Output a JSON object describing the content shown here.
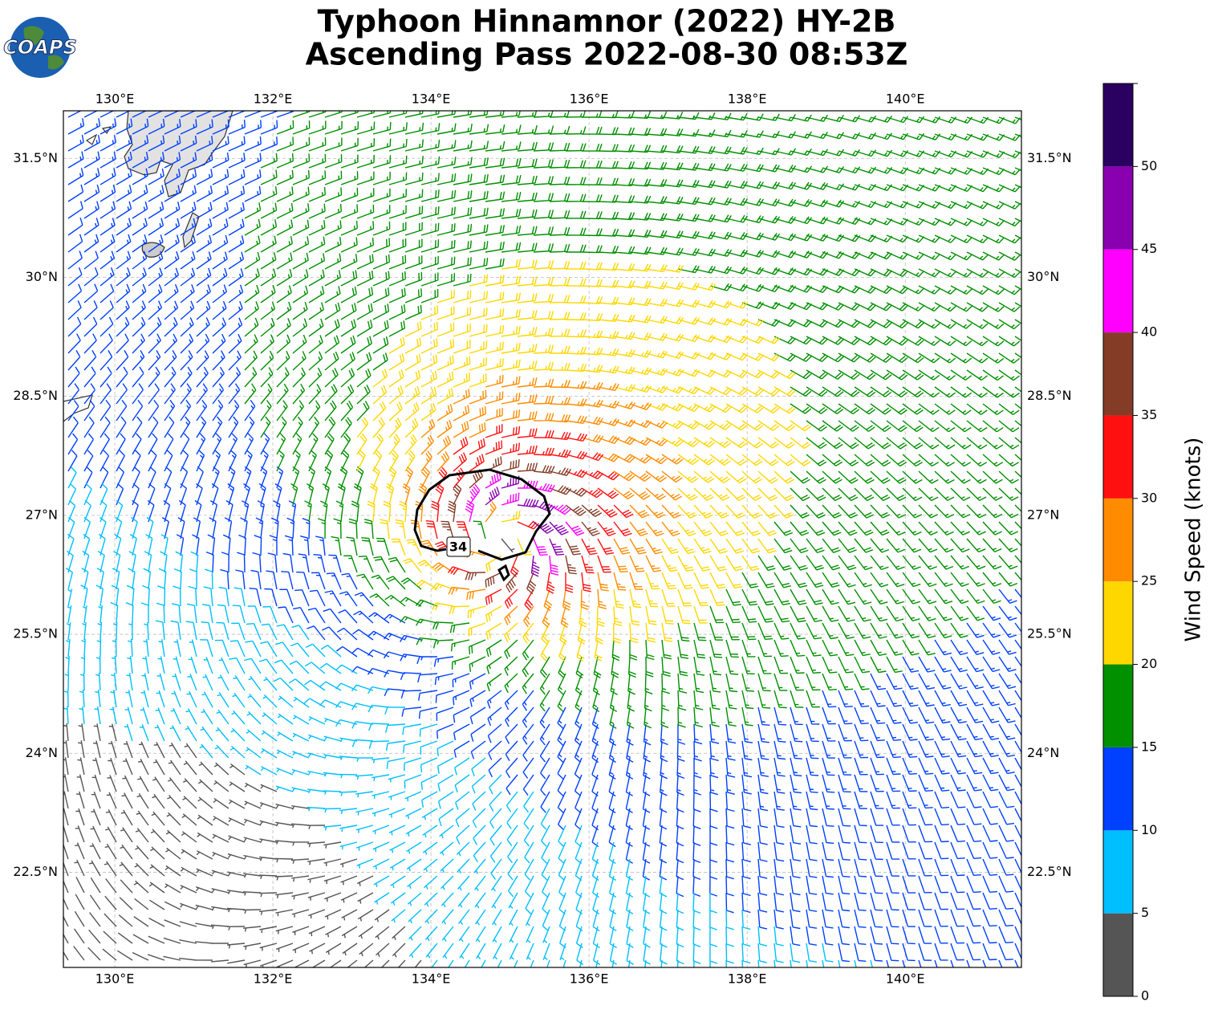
{
  "header": {
    "title_line1": "Typhoon Hinnamnor (2022) HY-2B",
    "title_line2": "Ascending Pass 2022-08-30 08:53Z"
  },
  "logo": {
    "text": "COAPS"
  },
  "map": {
    "xlim": [
      129.35,
      141.47
    ],
    "ylim": [
      21.3,
      32.1
    ],
    "xticks": [
      {
        "value": 130,
        "label": "130°E"
      },
      {
        "value": 132,
        "label": "132°E"
      },
      {
        "value": 134,
        "label": "134°E"
      },
      {
        "value": 136,
        "label": "136°E"
      },
      {
        "value": 138,
        "label": "138°E"
      },
      {
        "value": 140,
        "label": "140°E"
      }
    ],
    "yticks": [
      {
        "value": 22.5,
        "label": "22.5°N"
      },
      {
        "value": 24,
        "label": "24°N"
      },
      {
        "value": 25.5,
        "label": "25.5°N"
      },
      {
        "value": 27,
        "label": "27°N"
      },
      {
        "value": 28.5,
        "label": "28.5°N"
      },
      {
        "value": 30,
        "label": "30°N"
      },
      {
        "value": 31.5,
        "label": "31.5°N"
      }
    ],
    "grid": true,
    "contour_label": "34"
  },
  "colorbar": {
    "label": "Wind Speed (knots)",
    "bounds": [
      0,
      5,
      10,
      15,
      20,
      25,
      30,
      35,
      40,
      45,
      50,
      55
    ],
    "colors": [
      "#555555",
      "#00bfff",
      "#0040ff",
      "#009000",
      "#ffd700",
      "#ff8c00",
      "#ff1010",
      "#843c27",
      "#ff00ff",
      "#8800b0",
      "#2a0060"
    ],
    "ticks": [
      0,
      5,
      10,
      15,
      20,
      25,
      30,
      35,
      40,
      45,
      50
    ]
  }
}
